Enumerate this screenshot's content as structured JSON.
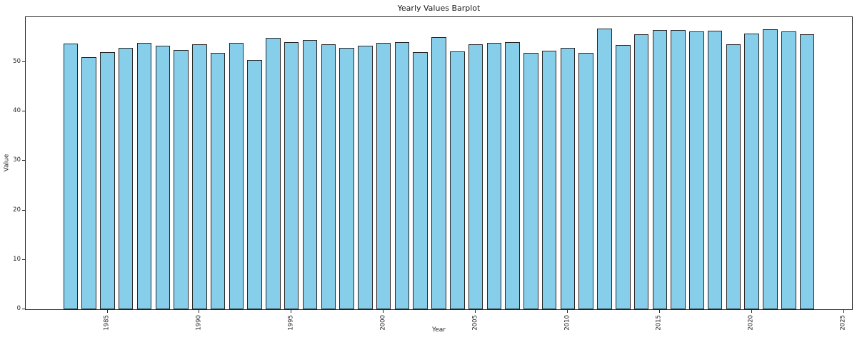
{
  "figure": {
    "background": "#ffffff",
    "spine_color": "#262626",
    "text_color": "#262626"
  },
  "chart_data": {
    "type": "bar",
    "title": "Yearly Values Barplot",
    "xlabel": "Year",
    "ylabel": "Value",
    "bar_color": "#87CEEB",
    "bar_edge_color": "#262626",
    "bar_width": 0.8,
    "grid": false,
    "legend": false,
    "xlim": [
      1980.56,
      2025.44
    ],
    "ylim": [
      0,
      59.05
    ],
    "xticks": [
      1985,
      1990,
      1995,
      2000,
      2005,
      2010,
      2015,
      2020,
      2025
    ],
    "yticks": [
      0,
      10,
      20,
      30,
      40,
      50
    ],
    "x": [
      1983,
      1984,
      1985,
      1986,
      1987,
      1988,
      1989,
      1990,
      1991,
      1992,
      1993,
      1994,
      1995,
      1996,
      1997,
      1998,
      1999,
      2000,
      2001,
      2002,
      2003,
      2004,
      2005,
      2006,
      2007,
      2008,
      2009,
      2010,
      2011,
      2012,
      2013,
      2014,
      2015,
      2016,
      2017,
      2018,
      2019,
      2020,
      2021,
      2022,
      2023
    ],
    "values": [
      53.7,
      51.0,
      52.0,
      52.9,
      53.8,
      53.3,
      52.4,
      53.6,
      51.8,
      53.8,
      50.4,
      54.9,
      54.0,
      54.4,
      53.5,
      52.9,
      53.3,
      53.9,
      54.0,
      52.0,
      55.0,
      52.1,
      53.5,
      53.8,
      54.0,
      51.9,
      52.3,
      52.8,
      51.9,
      56.7,
      53.4,
      55.6,
      56.5,
      56.4,
      56.1,
      56.3,
      53.6,
      55.8,
      56.6,
      56.1,
      55.6
    ]
  }
}
